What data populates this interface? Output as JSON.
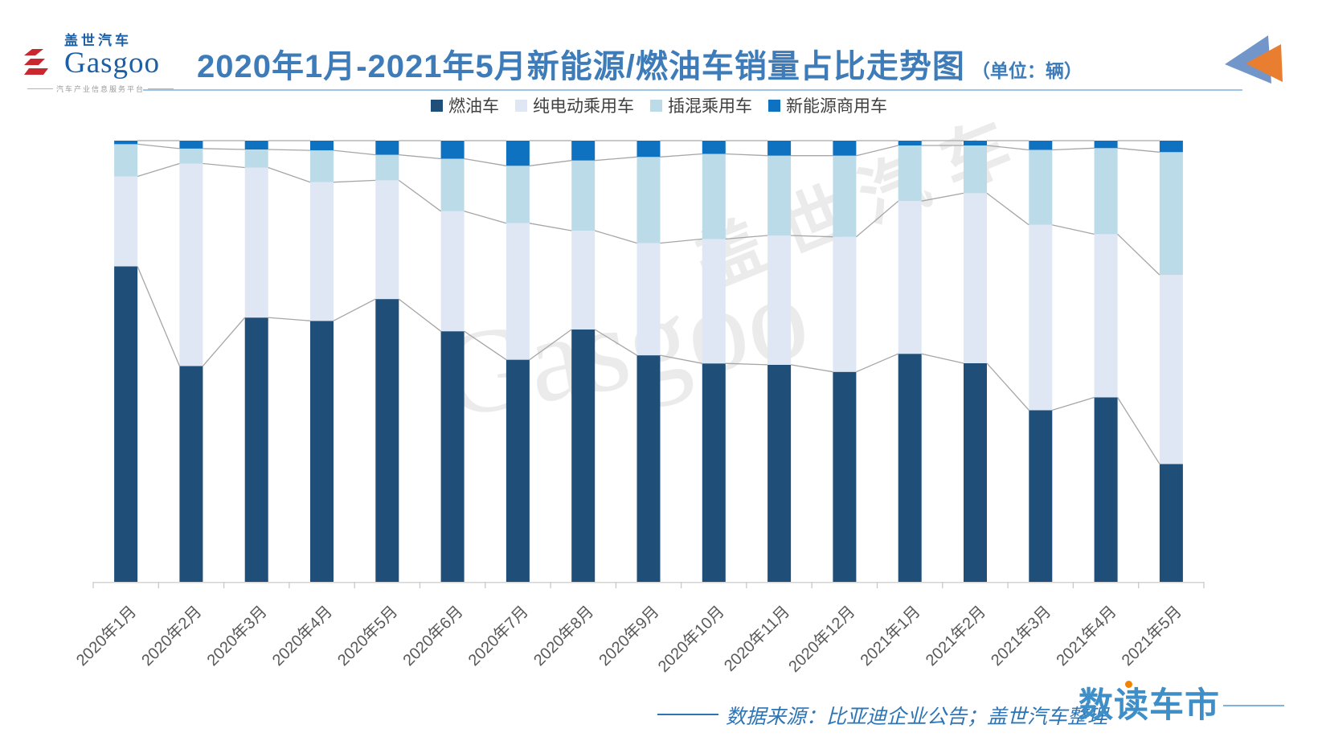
{
  "header": {
    "logo": {
      "cn": "盖世汽车",
      "en": "Gasgoo",
      "tagline": "汽车产业信息服务平台"
    },
    "title": "2020年1月-2021年5月新能源/燃油车销量占比走势图",
    "title_unit": "（单位：辆）"
  },
  "legend": [
    {
      "label": "燃油车",
      "color": "#1F4E79"
    },
    {
      "label": "纯电动乘用车",
      "color": "#DEE7F3"
    },
    {
      "label": "插混乘用车",
      "color": "#BCDBE9"
    },
    {
      "label": "新能源商用车",
      "color": "#0F72C0"
    }
  ],
  "chart_data": {
    "type": "bar",
    "subtype": "stacked-100-percent",
    "unit": "share of monthly sales, %",
    "title": "2020年1月-2021年5月新能源/燃油车销量占比走势图（单位：辆）",
    "categories": [
      "2020年1月",
      "2020年2月",
      "2020年3月",
      "2020年4月",
      "2020年5月",
      "2020年6月",
      "2020年7月",
      "2020年8月",
      "2020年9月",
      "2020年10月",
      "2020年11月",
      "2020年12月",
      "2021年1月",
      "2021年2月",
      "2021年3月",
      "2021年4月",
      "2021年5月"
    ],
    "series": [
      {
        "name": "燃油车",
        "color": "#1F4E79",
        "values": [
          71.5,
          48.9,
          59.9,
          59.1,
          64.1,
          56.8,
          50.3,
          57.2,
          51.3,
          49.5,
          49.2,
          47.6,
          51.7,
          49.5,
          38.9,
          41.8,
          26.7
        ]
      },
      {
        "name": "纯电动乘用车",
        "color": "#DEE7F3",
        "values": [
          20.4,
          45.9,
          34.0,
          31.4,
          26.9,
          27.2,
          30.9,
          22.4,
          25.4,
          28.2,
          29.3,
          30.6,
          34.6,
          38.5,
          42.0,
          37.0,
          42.8
        ]
      },
      {
        "name": "插混乘用车",
        "color": "#BCDBE9",
        "values": [
          7.3,
          3.4,
          4.1,
          7.2,
          5.8,
          11.9,
          13.0,
          15.9,
          19.5,
          19.3,
          18.1,
          18.4,
          12.6,
          10.8,
          17.0,
          19.5,
          27.8
        ]
      },
      {
        "name": "新能源商用车",
        "color": "#0F72C0",
        "values": [
          0.8,
          1.8,
          2.0,
          2.2,
          3.2,
          4.1,
          5.7,
          4.5,
          3.7,
          3.0,
          3.4,
          3.4,
          1.1,
          1.1,
          2.1,
          1.7,
          2.6
        ]
      }
    ],
    "ylim": [
      0,
      100
    ],
    "grid": false,
    "y_axis_visible": false,
    "legend_position": "top",
    "axis_label_rotation": -45,
    "connector_lines": true
  },
  "watermark": {
    "line1": "盖世汽车",
    "line2": "Gasgoo"
  },
  "footer": {
    "source": "数据来源：比亚迪企业公告；盖世汽车整理",
    "brand": "数读车市"
  },
  "colors": {
    "title_blue": "#3d7cb8",
    "underline": "#9dc3e6",
    "axis_label": "#595959",
    "legend_text": "#404040",
    "connector_gray": "#a6a6a6",
    "axis_gray": "#d4d4d4",
    "watermark_gray": "#ebebeb",
    "logo_blue": "#1b5fa6",
    "logo_red": "#c8282e",
    "brand_blue": "#3e8ec8",
    "brand_orange": "#f08300",
    "triangle_blue": "#7296c9",
    "triangle_orange": "#e97e30"
  }
}
